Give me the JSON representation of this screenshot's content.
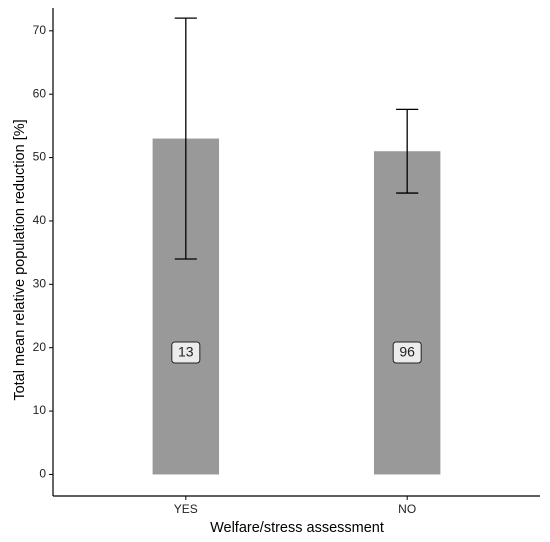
{
  "chart_data": {
    "type": "bar",
    "xlabel": "Welfare/stress assessment",
    "ylabel": "Total mean relative population reduction [%]",
    "categories": [
      "YES",
      "NO"
    ],
    "values": [
      53,
      51
    ],
    "errors": [
      19,
      6.6
    ],
    "sample_sizes": [
      13,
      96
    ],
    "color": "#999999",
    "ylim": [
      -3.4,
      73.6
    ],
    "yticks": [
      0,
      10,
      20,
      30,
      40,
      50,
      60,
      70
    ],
    "grid": false
  }
}
